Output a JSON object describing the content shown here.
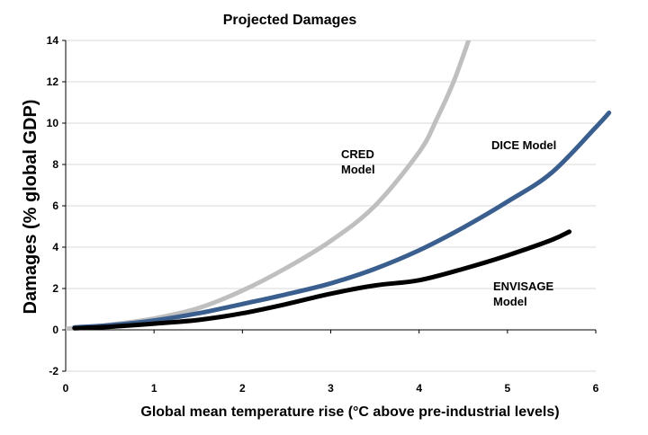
{
  "chart_data": {
    "type": "line",
    "title": "Projected Damages",
    "xlabel": "Global mean temperature rise (°C above pre-industrial levels)",
    "ylabel": "Damages (% global GDP)",
    "xlim": [
      0,
      6
    ],
    "ylim": [
      -2,
      14
    ],
    "x_ticks": [
      "0",
      "1",
      "2",
      "3",
      "4",
      "5",
      "6"
    ],
    "y_ticks": [
      "-2",
      "0",
      "2",
      "4",
      "6",
      "8",
      "10",
      "12",
      "14"
    ],
    "grid": true,
    "legend": "none",
    "series": [
      {
        "name": "CRED Model",
        "label_lines": [
          "CRED",
          "Model"
        ],
        "color": "#bfbfbf",
        "x": [
          0.0,
          0.5,
          1.0,
          1.5,
          2.0,
          2.5,
          3.0,
          3.5,
          4.0,
          4.2,
          4.4,
          4.6
        ],
        "y": [
          0.05,
          0.25,
          0.55,
          1.05,
          1.9,
          3.0,
          4.3,
          6.0,
          8.6,
          10.2,
          12.1,
          14.5
        ]
      },
      {
        "name": "DICE Model",
        "label_lines": [
          "DICE Model"
        ],
        "color": "#3a5f8f",
        "x": [
          0.1,
          0.5,
          1.0,
          1.5,
          2.0,
          2.5,
          3.0,
          3.5,
          4.0,
          4.5,
          5.0,
          5.5,
          6.0,
          6.15
        ],
        "y": [
          0.12,
          0.22,
          0.45,
          0.8,
          1.25,
          1.72,
          2.25,
          2.95,
          3.85,
          4.95,
          6.2,
          7.6,
          9.8,
          10.5
        ]
      },
      {
        "name": "ENVISAGE Model",
        "label_lines": [
          "ENVISAGE",
          "Model"
        ],
        "color": "#000000",
        "x": [
          0.1,
          0.5,
          1.0,
          1.5,
          2.0,
          2.5,
          3.0,
          3.5,
          4.0,
          4.5,
          5.0,
          5.5,
          5.7
        ],
        "y": [
          0.08,
          0.15,
          0.3,
          0.48,
          0.8,
          1.25,
          1.75,
          2.15,
          2.4,
          2.95,
          3.6,
          4.35,
          4.75
        ]
      }
    ]
  }
}
